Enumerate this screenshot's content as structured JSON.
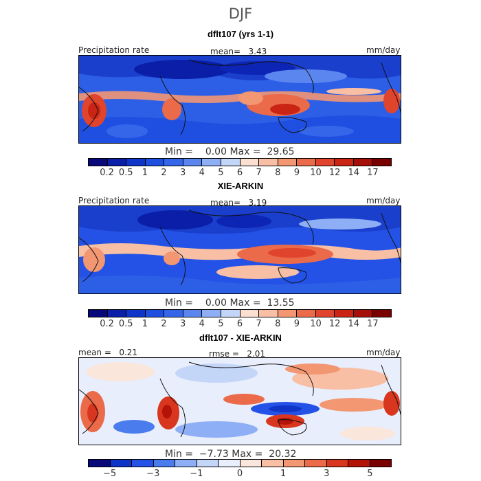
{
  "figure": {
    "season": "DJF"
  },
  "colors": {
    "full": [
      "#08087a",
      "#0a1ea8",
      "#0f35c8",
      "#1e4fe0",
      "#3566ea",
      "#5b86f0",
      "#8eaff5",
      "#c4d6f8",
      "#fbe0d2",
      "#f8bfa4",
      "#f39672",
      "#ea6a4a",
      "#e0442c",
      "#c92414",
      "#a60e08",
      "#7a0000"
    ],
    "diff": [
      "#08087a",
      "#0f35c8",
      "#2452e6",
      "#4a7cee",
      "#8eaff5",
      "#c4d6f8",
      "#e8eefb",
      "#fbe6dc",
      "#f8bfa4",
      "#f39672",
      "#ea6a4a",
      "#d8361e",
      "#b41408",
      "#7a0000"
    ]
  },
  "panels": [
    {
      "title": "dflt107 (yrs 1-1)",
      "left_label": "Precipitation rate",
      "stat": "mean=   3.43",
      "units": "mm/day",
      "min_max": "Min =    0.00 Max =  29.65",
      "ticks": [
        "0.2",
        "0.5",
        "1",
        "2",
        "3",
        "4",
        "5",
        "6",
        "7",
        "8",
        "9",
        "10",
        "12",
        "14",
        "17"
      ]
    },
    {
      "title": "XIE-ARKIN",
      "left_label": "Precipitation rate",
      "stat": "mean=   3.19",
      "units": "mm/day",
      "min_max": "Min =    0.00 Max =  13.55",
      "ticks": [
        "0.2",
        "0.5",
        "1",
        "2",
        "3",
        "4",
        "5",
        "6",
        "7",
        "8",
        "9",
        "10",
        "12",
        "14",
        "17"
      ]
    },
    {
      "title": "dflt107 - XIE-ARKIN",
      "left_label": "mean =   0.21",
      "stat": "rmse =   2.01",
      "units": "mm/day",
      "min_max": "Min =  −7.73 Max =  20.32",
      "ticks": [
        "−5",
        "−3",
        "−1",
        "0",
        "1",
        "3",
        "5"
      ]
    }
  ]
}
